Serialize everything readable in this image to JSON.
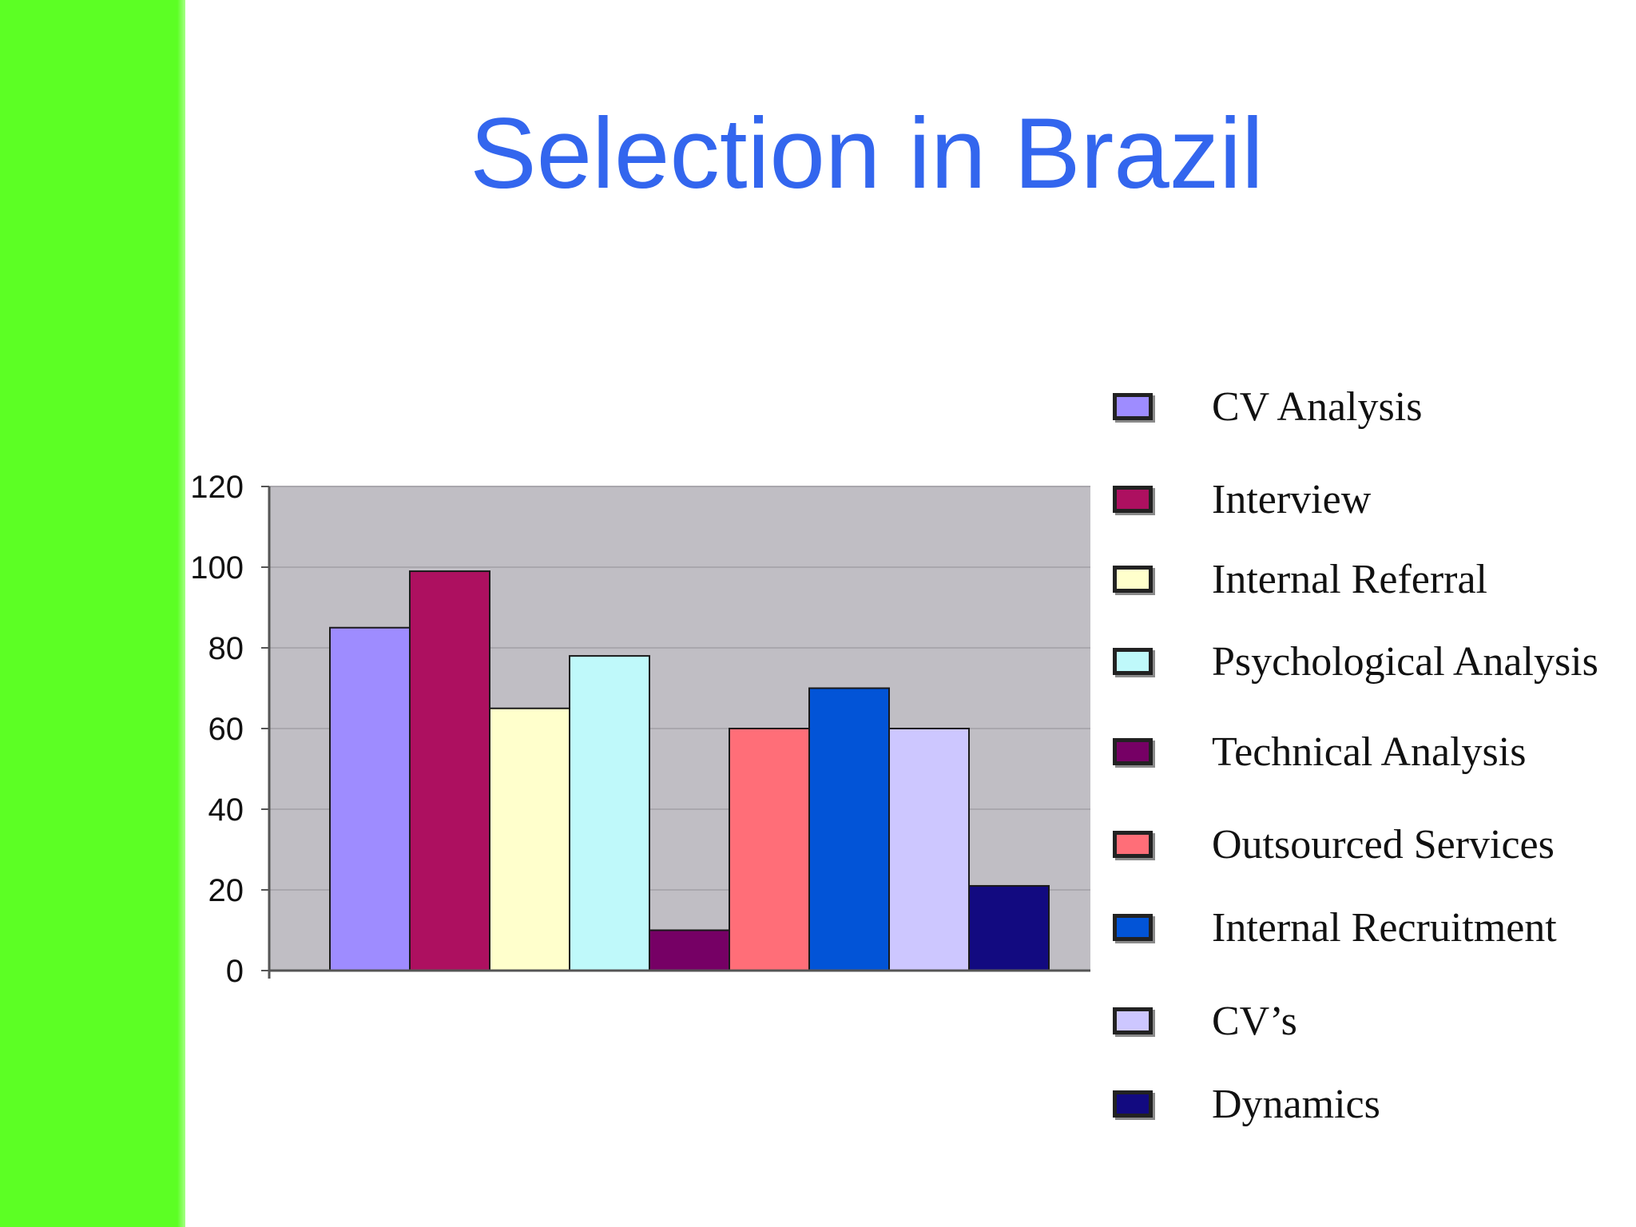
{
  "slide": {
    "title": "Selection in Brazil",
    "accent_color": "#5cff24",
    "title_color": "#3366ee"
  },
  "chart_data": {
    "type": "bar",
    "title": "",
    "xlabel": "",
    "ylabel": "",
    "ylim": [
      0,
      120
    ],
    "yticks": [
      "0",
      "20",
      "40",
      "60",
      "80",
      "100",
      "120"
    ],
    "grid": true,
    "legend_position": "right",
    "series": [
      {
        "name": "CV Analysis",
        "value": 85,
        "color": "#9e8cff"
      },
      {
        "name": "Interview",
        "value": 99,
        "color": "#ad1060"
      },
      {
        "name": "Internal Referral",
        "value": 65,
        "color": "#ffffcc"
      },
      {
        "name": "Psychological Analysis",
        "value": 78,
        "color": "#bff9fa"
      },
      {
        "name": "Technical Analysis",
        "value": 10,
        "color": "#760065"
      },
      {
        "name": "Outsourced Services",
        "value": 60,
        "color": "#ff6e78"
      },
      {
        "name": "Internal Recruitment",
        "value": 70,
        "color": "#0254d7"
      },
      {
        "name": "CV’s",
        "value": 60,
        "color": "#cdc7ff"
      },
      {
        "name": "Dynamics",
        "value": 21,
        "color": "#120a80"
      }
    ]
  }
}
